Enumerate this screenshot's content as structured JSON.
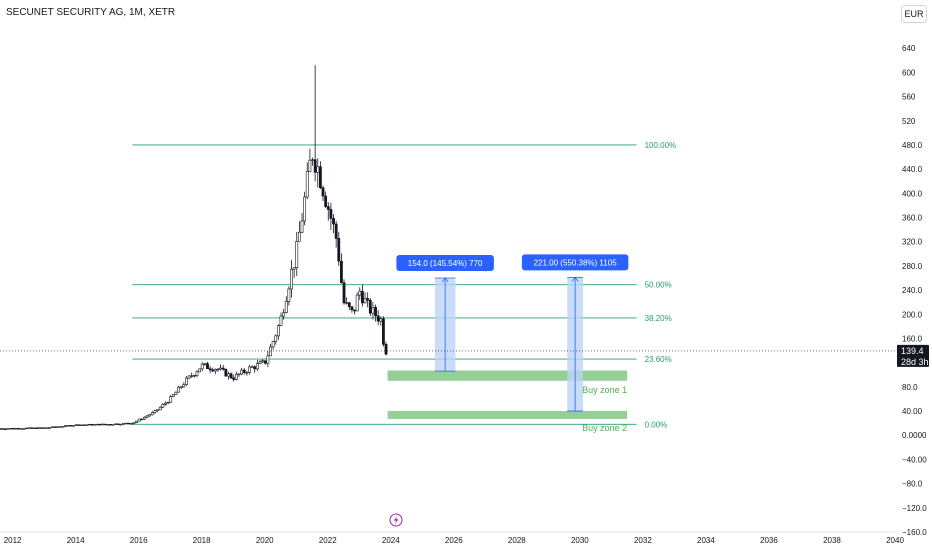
{
  "header": {
    "title": "SECUNET SECURITY AG, 1M, XETR",
    "currency": "EUR"
  },
  "colors": {
    "candle": "#131722",
    "fib_line": "#2a9d6f",
    "fib_text": "#2a9d6f",
    "zone_fill": "#81c784",
    "zone_text": "#4caf50",
    "measure_fill": "#bcd4f7",
    "measure_stroke": "#2962ff",
    "label_bg": "#2962ff",
    "price_tag_bg": "#131722"
  },
  "chart_data": {
    "type": "candlestick",
    "symbol": "SECUNET SECURITY AG",
    "interval": "1M",
    "exchange": "XETR",
    "x_range": [
      2011.6,
      2040
    ],
    "y_range": [
      -160,
      680
    ],
    "x_ticks": [
      "2012",
      "2014",
      "2016",
      "2018",
      "2020",
      "2022",
      "2024",
      "2026",
      "2028",
      "2030",
      "2032",
      "2034",
      "2036",
      "2038",
      "2040"
    ],
    "y_ticks": [
      "640",
      "600",
      "560",
      "520",
      "480.0",
      "440.0",
      "400.0",
      "360.0",
      "320.0",
      "280.0",
      "240.0",
      "200.0",
      "160.0",
      "120.0",
      "80.0",
      "40.00",
      "0.0000",
      "−40.00",
      "−80.0",
      "−120.0",
      "−160.0"
    ],
    "last_price": "139.4",
    "countdown": "28d 3h",
    "price_anchors": [
      [
        2011.6,
        11
      ],
      [
        2013.0,
        12
      ],
      [
        2014.0,
        17
      ],
      [
        2015.0,
        18
      ],
      [
        2015.8,
        20
      ],
      [
        2016.5,
        38
      ],
      [
        2017.0,
        60
      ],
      [
        2017.5,
        90
      ],
      [
        2018.0,
        115
      ],
      [
        2018.5,
        110
      ],
      [
        2019.0,
        95
      ],
      [
        2019.5,
        110
      ],
      [
        2020.0,
        120
      ],
      [
        2020.3,
        160
      ],
      [
        2020.5,
        190
      ],
      [
        2020.8,
        260
      ],
      [
        2021.0,
        300
      ],
      [
        2021.3,
        400
      ],
      [
        2021.5,
        470
      ],
      [
        2021.7,
        440
      ],
      [
        2022.0,
        380
      ],
      [
        2022.3,
        320
      ],
      [
        2022.5,
        220
      ],
      [
        2022.8,
        200
      ],
      [
        2023.0,
        240
      ],
      [
        2023.3,
        210
      ],
      [
        2023.5,
        200
      ],
      [
        2023.7,
        190
      ],
      [
        2023.8,
        140
      ],
      [
        2023.92,
        139.4
      ]
    ],
    "spikes": [
      {
        "x": 2021.6,
        "high": 612,
        "low": 420
      }
    ],
    "fib_levels": [
      {
        "label": "100.00%",
        "price": 480
      },
      {
        "label": "50.00%",
        "price": 249
      },
      {
        "label": "38.20%",
        "price": 194
      },
      {
        "label": "23.60%",
        "price": 126
      },
      {
        "label": "0.00%",
        "price": 18
      }
    ],
    "fib_x_range": [
      2015.8,
      2031.8
    ],
    "zones": [
      {
        "label": "Buy zone 1",
        "x_range": [
          2023.9,
          2031.5
        ],
        "price_range": [
          90,
          107
        ]
      },
      {
        "label": "Buy zone 2",
        "x_range": [
          2023.9,
          2031.5
        ],
        "price_range": [
          27,
          40
        ]
      }
    ],
    "measures": [
      {
        "label": "154.0 (145.54%) 770",
        "x_range": [
          2025.4,
          2026.05
        ],
        "price_range": [
          106,
          260
        ]
      },
      {
        "label": "221.00 (550.38%) 1105",
        "x_range": [
          2029.6,
          2030.1
        ],
        "price_range": [
          40,
          261
        ]
      }
    ]
  }
}
